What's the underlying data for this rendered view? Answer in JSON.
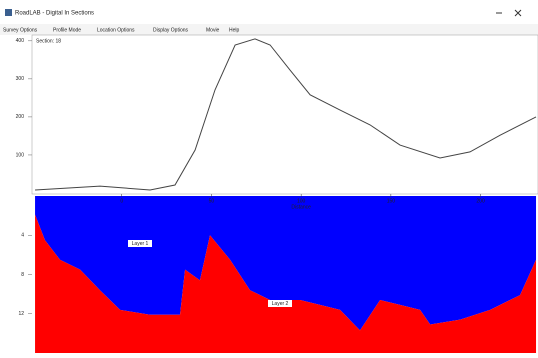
{
  "window": {
    "title": "RoadLAB - Digital In Sections",
    "menu": [
      "Survey Options",
      "Profile Mode",
      "Location Options",
      "Display Options",
      "Movie",
      "Help"
    ]
  },
  "chart_data": [
    {
      "type": "line",
      "label": "Section: 18",
      "color": "#444444",
      "x": [
        -48.3,
        -12.1,
        15.8,
        29.7,
        40.9,
        52,
        63.2,
        74.3,
        82.7,
        93.8,
        105,
        121.7,
        138.4,
        155.1,
        177.4,
        194.1,
        210.9,
        230.9
      ],
      "values": [
        8,
        18,
        8,
        21,
        113,
        271,
        389,
        405,
        389,
        323,
        258,
        218,
        179,
        126,
        92,
        108,
        152,
        200
      ],
      "xlim": [
        -50,
        232
      ],
      "ylim": [
        0,
        410
      ],
      "yticks": [
        100,
        200,
        300,
        400
      ]
    },
    {
      "type": "stacked-area",
      "x": [
        -48.3,
        -42.8,
        -34.4,
        -23.2,
        -12.1,
        -0.9,
        15.8,
        32.5,
        35.3,
        43.6,
        49.2,
        60.4,
        71.5,
        82.7,
        99.4,
        110.5,
        121.7,
        132.8,
        144,
        155.1,
        166.3,
        171.9,
        188.6,
        205.3,
        222,
        230.9
      ],
      "series": [
        {
          "name": "Layer 1",
          "color": "#0000ff",
          "values": [
            1.9,
            4.5,
            6.5,
            7.5,
            9.6,
            11.6,
            12.1,
            12.1,
            7.5,
            8.6,
            4.0,
            6.5,
            9.6,
            10.6,
            10.6,
            11.1,
            11.6,
            13.7,
            10.6,
            11.1,
            11.6,
            13.1,
            12.6,
            11.6,
            10.1,
            6.5
          ]
        },
        {
          "name": "Layer 2",
          "color": "#ff0000",
          "values": [
            14.1,
            11.5,
            9.5,
            8.5,
            6.4,
            4.4,
            3.9,
            3.9,
            8.5,
            7.4,
            12,
            9.5,
            6.4,
            5.4,
            5.4,
            4.9,
            4.4,
            2.3,
            5.4,
            4.9,
            4.4,
            2.9,
            3.4,
            4.4,
            5.9,
            9.5
          ]
        }
      ],
      "xlim": [
        -50,
        232
      ],
      "xticks": [
        0,
        50,
        100,
        150,
        200
      ],
      "x_label": "Distance",
      "ylim": [
        0,
        16
      ],
      "yticks": [
        4,
        8,
        12
      ]
    }
  ]
}
